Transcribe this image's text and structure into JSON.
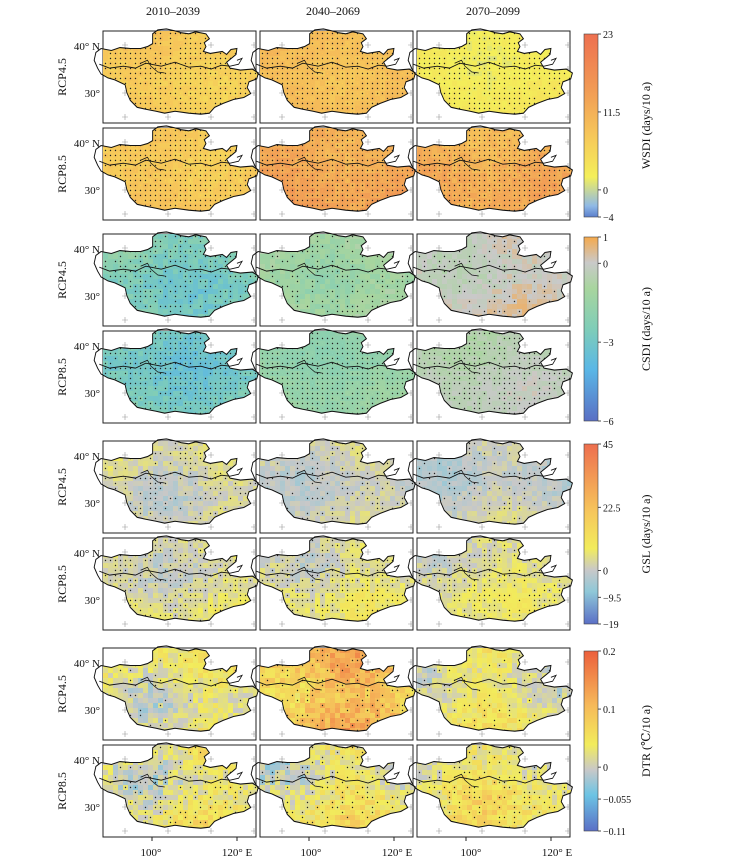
{
  "columns": [
    "2010–2039",
    "2040–2069",
    "2070–2099"
  ],
  "rows": [
    "RCP4.5",
    "RCP8.5"
  ],
  "lat_labels": [
    "40° N",
    "30°"
  ],
  "lon_labels": [
    "100°",
    "120° E"
  ],
  "panels": [
    {
      "label": "WSDI (days/10 a)",
      "ticks": [
        "23",
        "11.5",
        "0",
        "−4"
      ],
      "tick_values": [
        23,
        11.5,
        0,
        -4
      ],
      "vmin": -4,
      "vmax": 23,
      "palette": [
        "#5b7fcc",
        "#8fb9e6",
        "#f4ef5a",
        "#f6c65a",
        "#f19a55",
        "#ee7050"
      ],
      "stops": [
        0,
        0.06,
        0.22,
        0.45,
        0.7,
        1
      ],
      "maps": [
        [
          {
            "base": 0.42,
            "var": 0.06,
            "dots": 0.8
          },
          {
            "base": 0.5,
            "var": 0.06,
            "dots": 0.85
          },
          {
            "base": 0.25,
            "var": 0.05,
            "dots": 0.7
          }
        ],
        [
          {
            "base": 0.44,
            "var": 0.06,
            "dots": 0.85
          },
          {
            "base": 0.62,
            "var": 0.1,
            "dots": 0.9
          },
          {
            "base": 0.58,
            "var": 0.1,
            "dots": 0.9
          }
        ]
      ]
    },
    {
      "label": "CSDI (days/10 a)",
      "ticks": [
        "1",
        "0",
        "−3",
        "−6"
      ],
      "tick_values": [
        1,
        0,
        -3,
        -6
      ],
      "vmin": -6,
      "vmax": 1,
      "palette": [
        "#5a6fc4",
        "#5ab7e6",
        "#7fcdb8",
        "#a8d59e",
        "#c9c9c9",
        "#f5a94c"
      ],
      "stops": [
        0,
        0.28,
        0.5,
        0.72,
        0.86,
        1
      ],
      "maps": [
        [
          {
            "base": 0.5,
            "var": 0.12,
            "dots": 0.55
          },
          {
            "base": 0.7,
            "var": 0.1,
            "dots": 0.4
          },
          {
            "base": 0.86,
            "var": 0.08,
            "dots": 0.25
          }
        ],
        [
          {
            "base": 0.45,
            "var": 0.1,
            "dots": 0.8
          },
          {
            "base": 0.62,
            "var": 0.06,
            "dots": 0.85
          },
          {
            "base": 0.8,
            "var": 0.06,
            "dots": 0.7
          }
        ]
      ]
    },
    {
      "label": "GSL (days/10 a)",
      "ticks": [
        "45",
        "22.5",
        "0",
        "−9.5",
        "−19"
      ],
      "tick_values": [
        45,
        22.5,
        0,
        -9.5,
        -19
      ],
      "vmin": -19,
      "vmax": 45,
      "palette": [
        "#5b6fc6",
        "#8fc8d8",
        "#c8c8c8",
        "#f2ec5c",
        "#f6c75c",
        "#ee6e4e"
      ],
      "stops": [
        0,
        0.18,
        0.3,
        0.42,
        0.62,
        1
      ],
      "maps": [
        [
          {
            "base": 0.34,
            "var": 0.08,
            "dots": 0.35
          },
          {
            "base": 0.32,
            "var": 0.07,
            "dots": 0.3
          },
          {
            "base": 0.3,
            "var": 0.07,
            "dots": 0.25
          }
        ],
        [
          {
            "base": 0.36,
            "var": 0.09,
            "dots": 0.55
          },
          {
            "base": 0.37,
            "var": 0.1,
            "dots": 0.55
          },
          {
            "base": 0.36,
            "var": 0.09,
            "dots": 0.5
          }
        ]
      ]
    },
    {
      "label": "DTR (℃/10 a)",
      "ticks": [
        "0.2",
        "0.1",
        "0",
        "−0.055",
        "−0.11"
      ],
      "tick_values": [
        0.2,
        0.1,
        0,
        -0.055,
        -0.11
      ],
      "vmin": -0.11,
      "vmax": 0.2,
      "palette": [
        "#5b6fc6",
        "#6cc4e4",
        "#c8c8c8",
        "#f2ec5c",
        "#f6b95a",
        "#ec5f3c"
      ],
      "stops": [
        0,
        0.2,
        0.34,
        0.48,
        0.7,
        1
      ],
      "maps": [
        [
          {
            "base": 0.44,
            "var": 0.14,
            "dots": 0.15
          },
          {
            "base": 0.68,
            "var": 0.18,
            "dots": 0.3
          },
          {
            "base": 0.45,
            "var": 0.13,
            "dots": 0.2
          }
        ],
        [
          {
            "base": 0.46,
            "var": 0.16,
            "dots": 0.35
          },
          {
            "base": 0.45,
            "var": 0.16,
            "dots": 0.3
          },
          {
            "base": 0.47,
            "var": 0.15,
            "dots": 0.35
          }
        ]
      ]
    }
  ]
}
